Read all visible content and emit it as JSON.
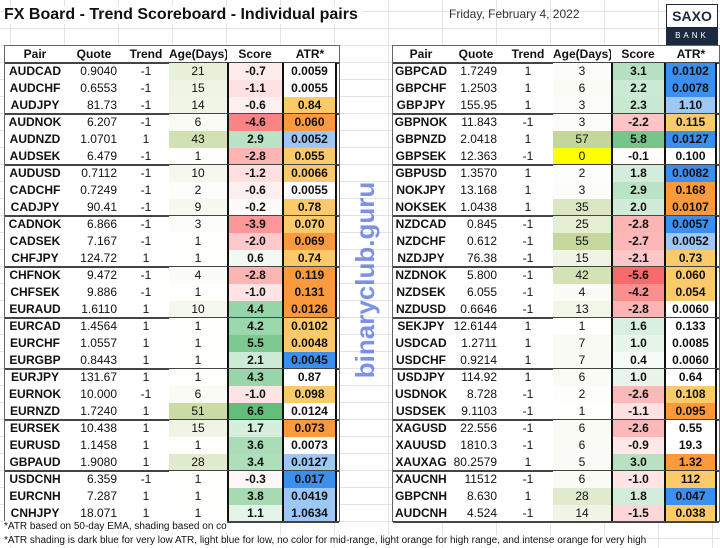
{
  "title": "FX Board - Trend Scoreboard - Individual pairs",
  "date": "Friday, February 4, 2022",
  "logo": {
    "top": "SAXO",
    "bottom": "BANK"
  },
  "headers": [
    "Pair",
    "Quote",
    "Trend",
    "Age(Days)",
    "Score",
    "ATR*"
  ],
  "atr_colors": {
    "db": "#3a8fef",
    "lb": "#9dc8f6",
    "none": "#ffffff",
    "lo": "#fdca6b",
    "ho": "#fb9a3c"
  },
  "left": [
    [
      "AUDCAD",
      "0.9040",
      "-1",
      "21",
      "-0.7",
      "none",
      "0.0059"
    ],
    [
      "AUDCHF",
      "0.6553",
      "-1",
      "15",
      "-1.1",
      "none",
      "0.0055"
    ],
    [
      "AUDJPY",
      "81.73",
      "-1",
      "14",
      "-0.6",
      "lo",
      "0.84"
    ],
    [
      "AUDNOK",
      "6.207",
      "-1",
      "6",
      "-4.6",
      "ho",
      "0.060"
    ],
    [
      "AUDNZD",
      "1.0701",
      "1",
      "43",
      "2.9",
      "lb",
      "0.0052"
    ],
    [
      "AUDSEK",
      "6.479",
      "-1",
      "1",
      "-2.8",
      "lo",
      "0.055"
    ],
    [
      "AUDUSD",
      "0.7112",
      "-1",
      "10",
      "-1.2",
      "lo",
      "0.0066"
    ],
    [
      "CADCHF",
      "0.7249",
      "-1",
      "2",
      "-0.6",
      "none",
      "0.0055"
    ],
    [
      "CADJPY",
      "90.41",
      "-1",
      "9",
      "-0.2",
      "lo",
      "0.78"
    ],
    [
      "CADNOK",
      "6.866",
      "-1",
      "3",
      "-3.9",
      "lo",
      "0.070"
    ],
    [
      "CADSEK",
      "7.167",
      "-1",
      "1",
      "-2.0",
      "ho",
      "0.069"
    ],
    [
      "CHFJPY",
      "124.72",
      "1",
      "1",
      "0.6",
      "lo",
      "0.74"
    ],
    [
      "CHFNOK",
      "9.472",
      "-1",
      "4",
      "-2.8",
      "ho",
      "0.119"
    ],
    [
      "CHFSEK",
      "9.886",
      "-1",
      "1",
      "-1.0",
      "ho",
      "0.131"
    ],
    [
      "EURAUD",
      "1.6110",
      "1",
      "10",
      "4.4",
      "ho",
      "0.0126"
    ],
    [
      "EURCAD",
      "1.4564",
      "1",
      "1",
      "4.2",
      "lo",
      "0.0102"
    ],
    [
      "EURCHF",
      "1.0557",
      "1",
      "1",
      "5.5",
      "lo",
      "0.0048"
    ],
    [
      "EURGBP",
      "0.8443",
      "1",
      "1",
      "2.1",
      "db",
      "0.0045"
    ],
    [
      "EURJPY",
      "131.67",
      "1",
      "1",
      "4.3",
      "none",
      "0.87"
    ],
    [
      "EURNOK",
      "10.000",
      "-1",
      "6",
      "-1.0",
      "lo",
      "0.098"
    ],
    [
      "EURNZD",
      "1.7240",
      "1",
      "51",
      "6.6",
      "none",
      "0.0124"
    ],
    [
      "EURSEK",
      "10.438",
      "1",
      "15",
      "1.7",
      "ho",
      "0.073"
    ],
    [
      "EURUSD",
      "1.1458",
      "1",
      "1",
      "3.6",
      "none",
      "0.0073"
    ],
    [
      "GBPAUD",
      "1.9080",
      "1",
      "28",
      "3.4",
      "lb",
      "0.0127"
    ],
    [
      "USDCNH",
      "6.359",
      "-1",
      "1",
      "-0.3",
      "db",
      "0.017"
    ],
    [
      "EURCNH",
      "7.287",
      "1",
      "1",
      "3.8",
      "lb",
      "0.0419"
    ],
    [
      "CNHJPY",
      "18.071",
      "1",
      "1",
      "1.1",
      "lb",
      "1.0634"
    ]
  ],
  "right": [
    [
      "GBPCAD",
      "1.7249",
      "1",
      "3",
      "3.1",
      "db",
      "0.0102"
    ],
    [
      "GBPCHF",
      "1.2503",
      "1",
      "6",
      "2.2",
      "db",
      "0.0078"
    ],
    [
      "GBPJPY",
      "155.95",
      "1",
      "3",
      "2.3",
      "lb",
      "1.10"
    ],
    [
      "GBPNOK",
      "11.843",
      "-1",
      "3",
      "-2.2",
      "lo",
      "0.115"
    ],
    [
      "GBPNZD",
      "2.0418",
      "1",
      "57",
      "5.8",
      "db",
      "0.0127"
    ],
    [
      "GBPSEK",
      "12.363",
      "-1",
      "0",
      "-0.1",
      "none",
      "0.100"
    ],
    [
      "GBPUSD",
      "1.3570",
      "1",
      "2",
      "1.8",
      "db",
      "0.0082"
    ],
    [
      "NOKJPY",
      "13.168",
      "1",
      "3",
      "2.9",
      "ho",
      "0.168"
    ],
    [
      "NOKSEK",
      "1.0438",
      "1",
      "35",
      "2.0",
      "ho",
      "0.0107"
    ],
    [
      "NZDCAD",
      "0.845",
      "-1",
      "25",
      "-2.8",
      "db",
      "0.0057"
    ],
    [
      "NZDCHF",
      "0.612",
      "-1",
      "55",
      "-2.7",
      "lb",
      "0.0052"
    ],
    [
      "NZDJPY",
      "76.38",
      "-1",
      "15",
      "-2.1",
      "lo",
      "0.73"
    ],
    [
      "NZDNOK",
      "5.800",
      "-1",
      "42",
      "-5.6",
      "lo",
      "0.060"
    ],
    [
      "NZDSEK",
      "6.055",
      "-1",
      "4",
      "-4.2",
      "lo",
      "0.054"
    ],
    [
      "NZDUSD",
      "0.6646",
      "-1",
      "13",
      "-2.8",
      "none",
      "0.0060"
    ],
    [
      "SEKJPY",
      "12.6144",
      "1",
      "1",
      "1.6",
      "none",
      "0.133"
    ],
    [
      "USDCAD",
      "1.2711",
      "1",
      "7",
      "1.0",
      "none",
      "0.0085"
    ],
    [
      "USDCHF",
      "0.9214",
      "1",
      "7",
      "0.4",
      "none",
      "0.0060"
    ],
    [
      "USDJPY",
      "114.92",
      "1",
      "6",
      "1.0",
      "none",
      "0.64"
    ],
    [
      "USDNOK",
      "8.728",
      "-1",
      "2",
      "-2.6",
      "lo",
      "0.108"
    ],
    [
      "USDSEK",
      "9.1103",
      "-1",
      "1",
      "-1.1",
      "ho",
      "0.095"
    ],
    [
      "XAGUSD",
      "22.556",
      "-1",
      "6",
      "-2.6",
      "none",
      "0.55"
    ],
    [
      "XAUUSD",
      "1810.3",
      "-1",
      "6",
      "-0.9",
      "none",
      "19.3"
    ],
    [
      "XAUXAG",
      "80.2579",
      "1",
      "5",
      "3.0",
      "ho",
      "1.32"
    ],
    [
      "XAUCNH",
      "11512",
      "-1",
      "6",
      "-1.0",
      "lo",
      "112"
    ],
    [
      "GBPCNH",
      "8.630",
      "1",
      "28",
      "1.8",
      "db",
      "0.047"
    ],
    [
      "AUDCNH",
      "4.524",
      "-1",
      "14",
      "-1.5",
      "lo",
      "0.038"
    ]
  ],
  "footnotes": [
    "*ATR based on 50-day EMA, shading based on co",
    "*ATR shading is dark blue for very low ATR, light blue for low, no color for mid-range, light orange for high range, and intense orange for very high"
  ],
  "watermark": "binaryclub.guru"
}
